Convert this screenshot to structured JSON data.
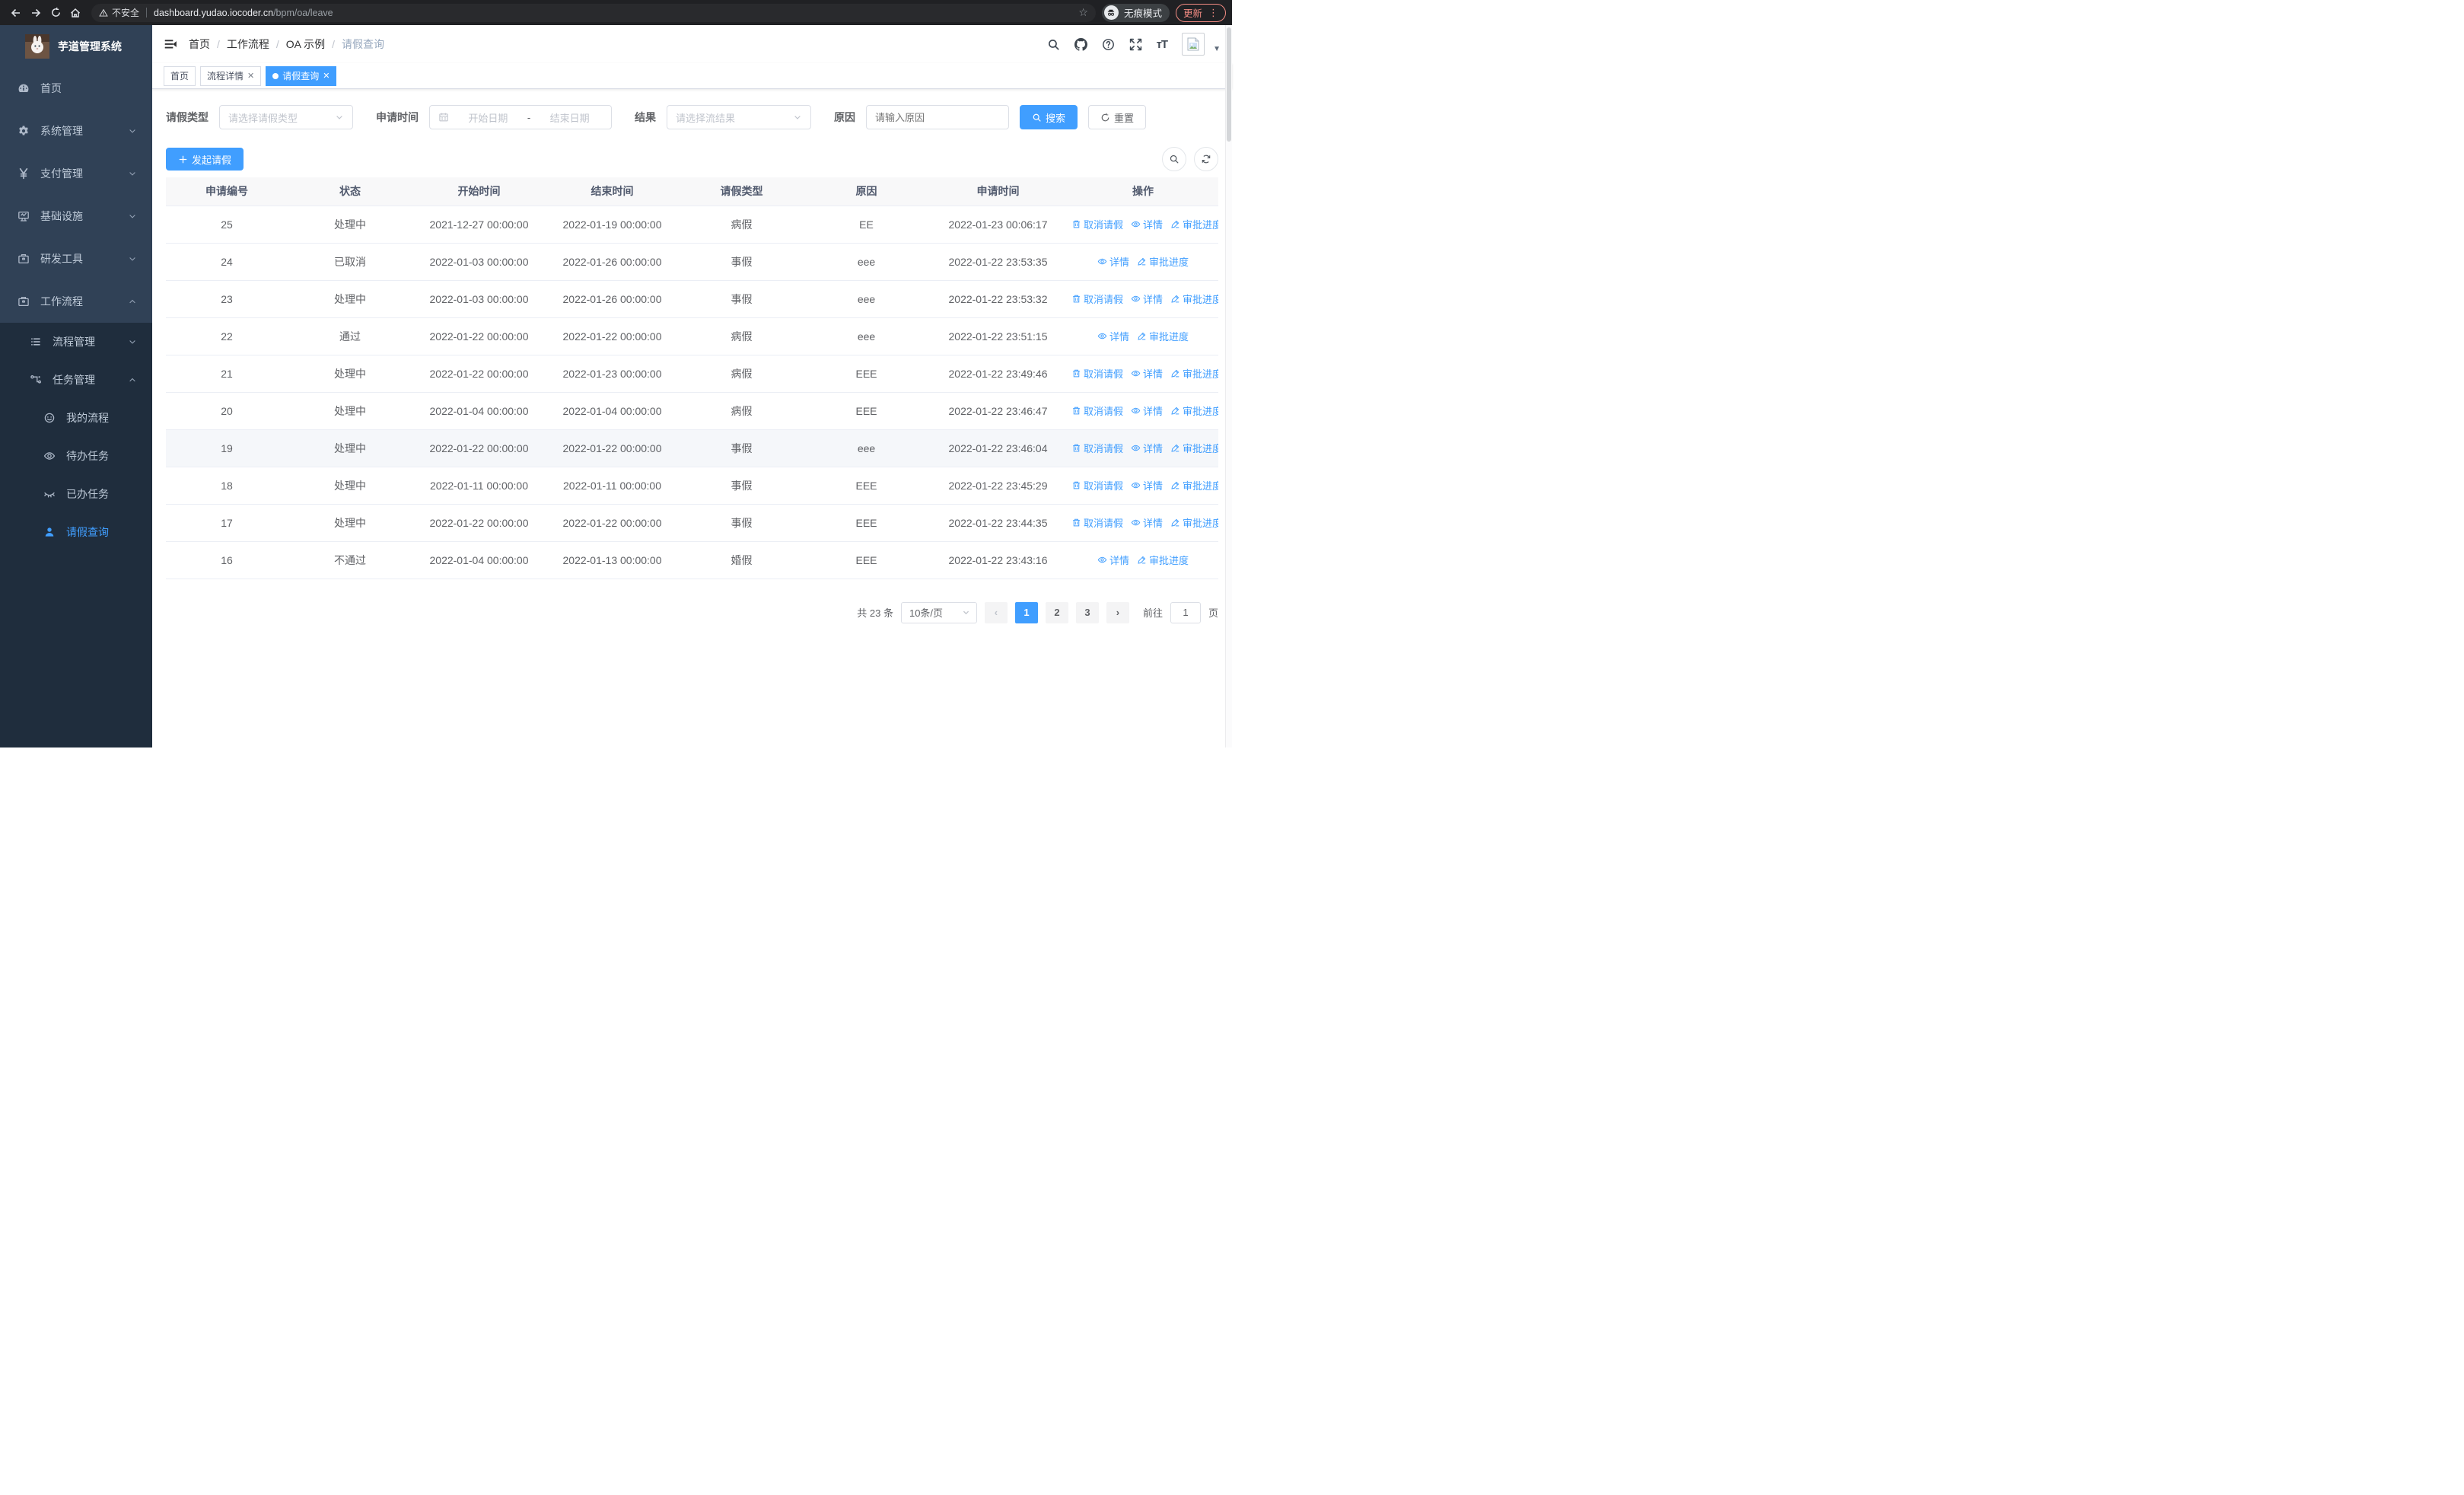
{
  "browser": {
    "security_label": "不安全",
    "url_domain": "dashboard.yudao.iocoder.cn",
    "url_path": "/bpm/oa/leave",
    "incognito_label": "无痕模式",
    "update_label": "更新"
  },
  "sidebar": {
    "title": "芋道管理系统",
    "menu": [
      {
        "name": "home",
        "label": "首页",
        "icon": "gauge-icon",
        "level": 0
      },
      {
        "name": "system-management",
        "label": "系统管理",
        "icon": "gear-icon",
        "level": 0,
        "chevron": "down"
      },
      {
        "name": "payment-management",
        "label": "支付管理",
        "icon": "yen-icon",
        "level": 0,
        "chevron": "down"
      },
      {
        "name": "infrastructure",
        "label": "基础设施",
        "icon": "monitor-icon",
        "level": 0,
        "chevron": "down"
      },
      {
        "name": "dev-tools",
        "label": "研发工具",
        "icon": "briefcase-icon",
        "level": 0,
        "chevron": "down"
      },
      {
        "name": "workflow",
        "label": "工作流程",
        "icon": "briefcase-icon",
        "level": 0,
        "chevron": "up"
      },
      {
        "name": "process-management",
        "label": "流程管理",
        "icon": "list-icon",
        "level": 1,
        "chevron": "down"
      },
      {
        "name": "task-management",
        "label": "任务管理",
        "icon": "tree-icon",
        "level": 1,
        "chevron": "up"
      },
      {
        "name": "my-process",
        "label": "我的流程",
        "icon": "face-icon",
        "level": 2
      },
      {
        "name": "todo-tasks",
        "label": "待办任务",
        "icon": "eye-icon",
        "level": 2
      },
      {
        "name": "done-tasks",
        "label": "已办任务",
        "icon": "eye-closed-icon",
        "level": 2
      },
      {
        "name": "leave-query",
        "label": "请假查询",
        "icon": "user-icon",
        "level": 2,
        "active": true
      }
    ]
  },
  "header": {
    "breadcrumb": [
      "首页",
      "工作流程",
      "OA 示例",
      "请假查询"
    ]
  },
  "tabs": [
    {
      "label": "首页",
      "closable": false,
      "active": false
    },
    {
      "label": "流程详情",
      "closable": true,
      "active": false
    },
    {
      "label": "请假查询",
      "closable": true,
      "active": true
    }
  ],
  "filters": {
    "leave_type_label": "请假类型",
    "leave_type_placeholder": "请选择请假类型",
    "apply_time_label": "申请时间",
    "start_placeholder": "开始日期",
    "range_separator": "-",
    "end_placeholder": "结束日期",
    "result_label": "结果",
    "result_placeholder": "请选择流结果",
    "reason_label": "原因",
    "reason_placeholder": "请输入原因",
    "search_label": "搜索",
    "reset_label": "重置"
  },
  "toolbar": {
    "create_label": "发起请假"
  },
  "table": {
    "columns": [
      "申请编号",
      "状态",
      "开始时间",
      "结束时间",
      "请假类型",
      "原因",
      "申请时间",
      "操作"
    ],
    "actions": {
      "cancel": "取消请假",
      "detail": "详情",
      "progress": "审批进度"
    },
    "rows": [
      {
        "id": "25",
        "status": "处理中",
        "start": "2021-12-27 00:00:00",
        "end": "2022-01-19 00:00:00",
        "type": "病假",
        "reason": "EE",
        "apply": "2022-01-23 00:06:17",
        "can_cancel": true,
        "highlight": false
      },
      {
        "id": "24",
        "status": "已取消",
        "start": "2022-01-03 00:00:00",
        "end": "2022-01-26 00:00:00",
        "type": "事假",
        "reason": "eee",
        "apply": "2022-01-22 23:53:35",
        "can_cancel": false,
        "highlight": false
      },
      {
        "id": "23",
        "status": "处理中",
        "start": "2022-01-03 00:00:00",
        "end": "2022-01-26 00:00:00",
        "type": "事假",
        "reason": "eee",
        "apply": "2022-01-22 23:53:32",
        "can_cancel": true,
        "highlight": false
      },
      {
        "id": "22",
        "status": "通过",
        "start": "2022-01-22 00:00:00",
        "end": "2022-01-22 00:00:00",
        "type": "病假",
        "reason": "eee",
        "apply": "2022-01-22 23:51:15",
        "can_cancel": false,
        "highlight": false
      },
      {
        "id": "21",
        "status": "处理中",
        "start": "2022-01-22 00:00:00",
        "end": "2022-01-23 00:00:00",
        "type": "病假",
        "reason": "EEE",
        "apply": "2022-01-22 23:49:46",
        "can_cancel": true,
        "highlight": false
      },
      {
        "id": "20",
        "status": "处理中",
        "start": "2022-01-04 00:00:00",
        "end": "2022-01-04 00:00:00",
        "type": "病假",
        "reason": "EEE",
        "apply": "2022-01-22 23:46:47",
        "can_cancel": true,
        "highlight": false
      },
      {
        "id": "19",
        "status": "处理中",
        "start": "2022-01-22 00:00:00",
        "end": "2022-01-22 00:00:00",
        "type": "事假",
        "reason": "eee",
        "apply": "2022-01-22 23:46:04",
        "can_cancel": true,
        "highlight": true
      },
      {
        "id": "18",
        "status": "处理中",
        "start": "2022-01-11 00:00:00",
        "end": "2022-01-11 00:00:00",
        "type": "事假",
        "reason": "EEE",
        "apply": "2022-01-22 23:45:29",
        "can_cancel": true,
        "highlight": false
      },
      {
        "id": "17",
        "status": "处理中",
        "start": "2022-01-22 00:00:00",
        "end": "2022-01-22 00:00:00",
        "type": "事假",
        "reason": "EEE",
        "apply": "2022-01-22 23:44:35",
        "can_cancel": true,
        "highlight": false
      },
      {
        "id": "16",
        "status": "不通过",
        "start": "2022-01-04 00:00:00",
        "end": "2022-01-13 00:00:00",
        "type": "婚假",
        "reason": "EEE",
        "apply": "2022-01-22 23:43:16",
        "can_cancel": false,
        "highlight": false
      }
    ]
  },
  "pagination": {
    "total_label": "共 23 条",
    "page_size": "10条/页",
    "pages": [
      "1",
      "2",
      "3"
    ],
    "active_page": "1",
    "prev_glyph": "‹",
    "next_glyph": "›",
    "goto_label": "前往",
    "goto_value": "1",
    "page_suffix": "页"
  },
  "colors": {
    "accent": "#409EFF",
    "sidebar_bg": "#304156",
    "submenu_bg": "#1F2D3D",
    "sidebar_text": "#BFCBD9",
    "update_chip": "#F28B82",
    "table_border": "#EBEEF5",
    "row_highlight": "#F5F7FA"
  }
}
